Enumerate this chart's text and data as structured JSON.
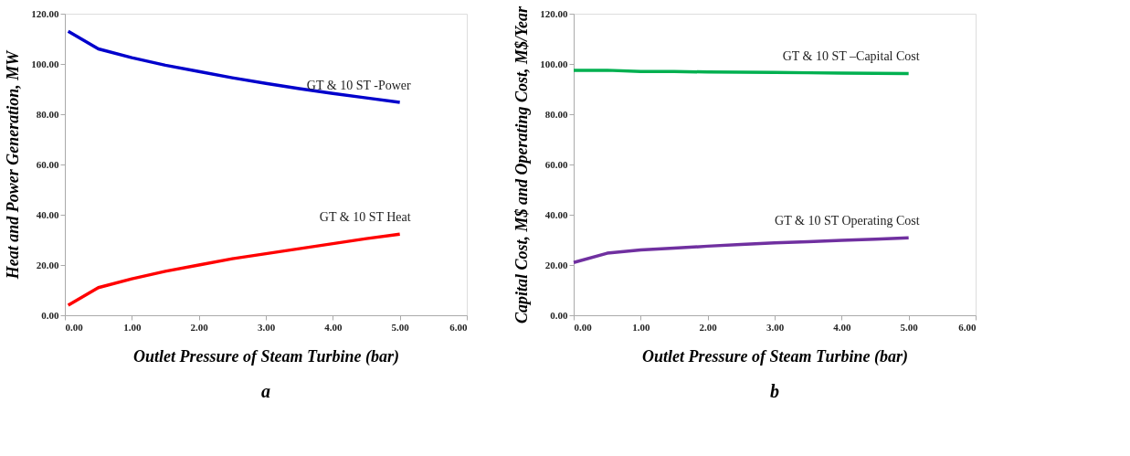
{
  "chart_data": [
    {
      "type": "line",
      "xlabel": "Outlet Pressure of Steam Turbine (bar)",
      "ylabel": "Heat and Power Generation, MW",
      "x": [
        0.05,
        0.5,
        1,
        1.5,
        2,
        2.5,
        3,
        3.5,
        4,
        4.5,
        5
      ],
      "series": [
        {
          "name": "GT & 10 ST -Power",
          "color": "#0000cc",
          "values": [
            113,
            106,
            102.5,
            99.5,
            97,
            94.5,
            92.3,
            90.2,
            88.3,
            86.5,
            84.7
          ]
        },
        {
          "name": "GT & 10 ST Heat",
          "color": "#ff0000",
          "values": [
            4,
            11,
            14.5,
            17.5,
            20,
            22.5,
            24.5,
            26.5,
            28.5,
            30.5,
            32.3
          ]
        }
      ],
      "xlim": [
        0,
        6
      ],
      "xticks": [
        {
          "value": 0,
          "label": "0.00"
        },
        {
          "value": 1,
          "label": "1.00"
        },
        {
          "value": 2,
          "label": "2.00"
        },
        {
          "value": 3,
          "label": "3.00"
        },
        {
          "value": 4,
          "label": "4.00"
        },
        {
          "value": 5,
          "label": "5.00"
        },
        {
          "value": 6,
          "label": "6.00"
        }
      ],
      "ylim": [
        0,
        120
      ],
      "yticks": [
        {
          "value": 0,
          "label": "0.00"
        },
        {
          "value": 20,
          "label": "20.00"
        },
        {
          "value": 40,
          "label": "40.00"
        },
        {
          "value": 60,
          "label": "60.00"
        },
        {
          "value": 80,
          "label": "80.00"
        },
        {
          "value": 100,
          "label": "100.00"
        },
        {
          "value": 120,
          "label": "120.00"
        }
      ],
      "grid": false,
      "legend": false,
      "marker": "none",
      "line_style": "solid",
      "annotations": [
        "a"
      ]
    },
    {
      "type": "line",
      "xlabel": "Outlet Pressure of Steam Turbine (bar)",
      "ylabel": "Capital Cost, M$ and Operating Cost, M$/Year",
      "x": [
        0,
        0.5,
        1,
        1.5,
        2,
        2.5,
        3,
        3.5,
        4,
        4.5,
        5
      ],
      "series": [
        {
          "name": "GT & 10 ST –Capital Cost",
          "color": "#00b050",
          "values": [
            97.5,
            97.5,
            97,
            97,
            96.8,
            96.7,
            96.6,
            96.5,
            96.4,
            96.3,
            96.2
          ]
        },
        {
          "name": "GT & 10 ST Operating Cost",
          "color": "#7030a0",
          "values": [
            21,
            24.7,
            26,
            26.7,
            27.5,
            28.2,
            28.8,
            29.3,
            29.8,
            30.3,
            30.8
          ]
        }
      ],
      "xlim": [
        0,
        6
      ],
      "xticks": [
        {
          "value": 0,
          "label": "0.00"
        },
        {
          "value": 1,
          "label": "1.00"
        },
        {
          "value": 2,
          "label": "2.00"
        },
        {
          "value": 3,
          "label": "3.00"
        },
        {
          "value": 4,
          "label": "4.00"
        },
        {
          "value": 5,
          "label": "5.00"
        },
        {
          "value": 6,
          "label": "6.00"
        }
      ],
      "ylim": [
        0,
        120
      ],
      "yticks": [
        {
          "value": 0,
          "label": "0.00"
        },
        {
          "value": 20,
          "label": "20.00"
        },
        {
          "value": 40,
          "label": "40.00"
        },
        {
          "value": 60,
          "label": "60.00"
        },
        {
          "value": 80,
          "label": "80.00"
        },
        {
          "value": 100,
          "label": "100.00"
        },
        {
          "value": 120,
          "label": "120.00"
        }
      ],
      "grid": false,
      "legend": false,
      "marker": "none",
      "line_style": "solid",
      "annotations": [
        "b"
      ]
    }
  ]
}
